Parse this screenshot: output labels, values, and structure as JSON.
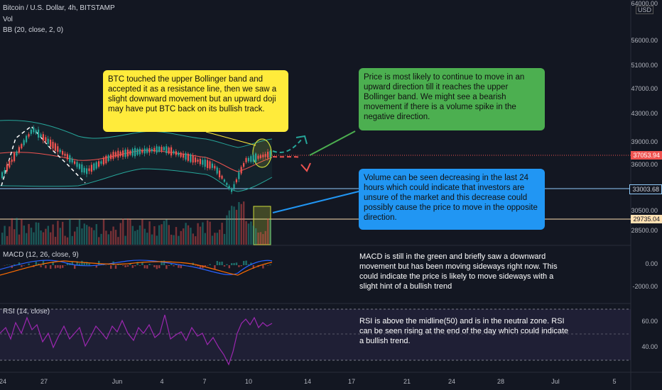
{
  "header": {
    "title": "Bitcoin / U.S. Dollar, 4h, BITSTAMP",
    "vol_label": "Vol",
    "bb_label": "BB (20, close, 2, 0)",
    "macd_label": "MACD (12, 26, close, 9)",
    "rsi_label": "RSI (14, close)"
  },
  "price_scale": {
    "currency": "USD",
    "top_partial": "64000.00",
    "labels": [
      "56000.00",
      "51000.00",
      "47000.00",
      "43000.00",
      "39000.00",
      "36000.00",
      "30500.00",
      "28500.00"
    ],
    "current_price": "37053.94",
    "line_1": "33003.68",
    "line_2": "29735.04"
  },
  "macd_scale": [
    "0.00",
    "-2000.00"
  ],
  "rsi_scale": [
    "60.00",
    "40.00"
  ],
  "x_axis": [
    "24",
    "27",
    "Jun",
    "4",
    "7",
    "10",
    "14",
    "17",
    "21",
    "24",
    "28",
    "Jul",
    "5"
  ],
  "annotations": {
    "yellow": "BTC touched the upper Bollinger band and accepted it as a resistance line, then we saw a slight downward movement but an upward doji may have put BTC back on its bullish track.",
    "green": "Price is most likely to continue to move in an upward direction till it reaches the upper Bollinger band. We might see a bearish movement if there is a volume spike in the negative direction.",
    "blue": "Volume can be seen decreasing in the last 24 hours which could indicate that investors are unsure of the market and this decrease could possibly cause the price to move in the opposite direction.",
    "macd": "MACD is still in the green and briefly saw a downward movement but has been moving sideways right now. This could indicate the price is likely to move sideways with a slight hint of a bullish trend",
    "rsi": "RSI is above the midline(50) and is in the neutral zone. RSI can be seen rising at the end of the day which could indicate a bullish trend."
  },
  "colors": {
    "background": "#131722",
    "up": "#26a69a",
    "down": "#ef5350",
    "note_yellow": "#ffeb3b",
    "note_green": "#4caf50",
    "note_blue": "#2196f3",
    "rsi_line": "#9c27b0"
  }
}
